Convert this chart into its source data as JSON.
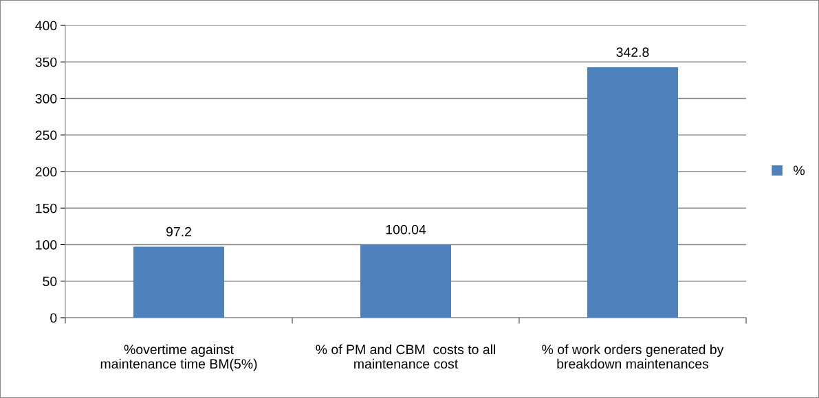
{
  "chart_data": {
    "type": "bar",
    "categories": [
      "%overtime against\nmaintenance time BM(5%)",
      "% of PM and CBM  costs to all\nmaintenance cost",
      "% of work orders generated by\nbreakdown maintenances"
    ],
    "series": [
      {
        "name": "%",
        "color": "#4f81bd",
        "values": [
          97.2,
          100.04,
          342.8
        ]
      }
    ],
    "ylim": [
      0,
      400
    ],
    "yticks": [
      0,
      50,
      100,
      150,
      200,
      250,
      300,
      350,
      400
    ],
    "grid": "y",
    "legend": "right",
    "data_labels": true
  }
}
